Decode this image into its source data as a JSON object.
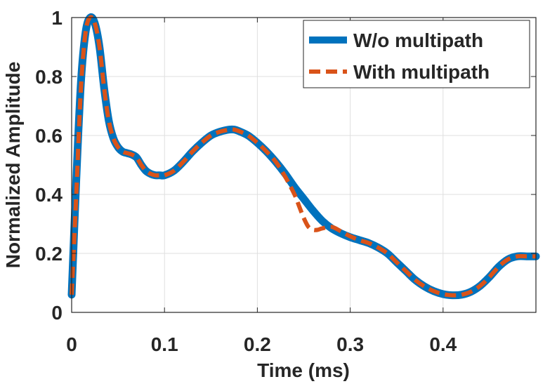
{
  "chart_data": {
    "type": "line",
    "title": "",
    "xlabel": "Time (ms)",
    "ylabel": "Normalized Amplitude",
    "xlim": [
      0,
      0.5
    ],
    "ylim": [
      0,
      1
    ],
    "xticks": [
      0,
      0.1,
      0.2,
      0.3,
      0.4
    ],
    "xtick_labels": [
      "0",
      "0.1",
      "0.2",
      "0.3",
      "0.4"
    ],
    "yticks": [
      0,
      0.2,
      0.4,
      0.6,
      0.8,
      1
    ],
    "ytick_labels": [
      "0",
      "0.2",
      "0.4",
      "0.6",
      "0.8",
      "1"
    ],
    "grid": true,
    "legend_position": "top-right",
    "series": [
      {
        "name": "W/o multipath",
        "color": "#0072BD",
        "style": "solid",
        "x": [
          0.0,
          0.005,
          0.01,
          0.015,
          0.02,
          0.025,
          0.03,
          0.035,
          0.04,
          0.045,
          0.05,
          0.055,
          0.06,
          0.065,
          0.07,
          0.075,
          0.08,
          0.085,
          0.09,
          0.095,
          0.1,
          0.11,
          0.12,
          0.13,
          0.14,
          0.15,
          0.16,
          0.17,
          0.175,
          0.18,
          0.19,
          0.2,
          0.21,
          0.22,
          0.23,
          0.24,
          0.25,
          0.26,
          0.27,
          0.28,
          0.29,
          0.3,
          0.31,
          0.32,
          0.33,
          0.34,
          0.35,
          0.36,
          0.37,
          0.38,
          0.39,
          0.4,
          0.41,
          0.42,
          0.43,
          0.44,
          0.45,
          0.46,
          0.47,
          0.48,
          0.49,
          0.5
        ],
        "y": [
          0.06,
          0.45,
          0.78,
          0.95,
          1.0,
          0.98,
          0.9,
          0.76,
          0.65,
          0.59,
          0.56,
          0.545,
          0.54,
          0.535,
          0.525,
          0.5,
          0.48,
          0.47,
          0.465,
          0.465,
          0.465,
          0.48,
          0.51,
          0.545,
          0.575,
          0.6,
          0.613,
          0.62,
          0.62,
          0.615,
          0.6,
          0.575,
          0.545,
          0.51,
          0.47,
          0.425,
          0.385,
          0.345,
          0.31,
          0.285,
          0.268,
          0.255,
          0.245,
          0.235,
          0.22,
          0.2,
          0.17,
          0.14,
          0.11,
          0.088,
          0.072,
          0.062,
          0.058,
          0.06,
          0.07,
          0.09,
          0.12,
          0.155,
          0.18,
          0.19,
          0.19,
          0.19
        ]
      },
      {
        "name": "With multipath",
        "color": "#D95319",
        "style": "dashed",
        "x": [
          0.0,
          0.005,
          0.01,
          0.015,
          0.02,
          0.025,
          0.03,
          0.035,
          0.04,
          0.045,
          0.05,
          0.055,
          0.06,
          0.065,
          0.07,
          0.075,
          0.08,
          0.085,
          0.09,
          0.095,
          0.1,
          0.11,
          0.12,
          0.13,
          0.14,
          0.15,
          0.16,
          0.17,
          0.175,
          0.18,
          0.19,
          0.2,
          0.21,
          0.22,
          0.23,
          0.24,
          0.245,
          0.25,
          0.255,
          0.26,
          0.265,
          0.27,
          0.28,
          0.29,
          0.3,
          0.31,
          0.32,
          0.33,
          0.34,
          0.35,
          0.36,
          0.37,
          0.38,
          0.39,
          0.4,
          0.41,
          0.42,
          0.43,
          0.44,
          0.45,
          0.46,
          0.47,
          0.48,
          0.49,
          0.5
        ],
        "y": [
          0.06,
          0.4,
          0.76,
          0.95,
          1.0,
          0.98,
          0.9,
          0.76,
          0.65,
          0.59,
          0.56,
          0.545,
          0.54,
          0.535,
          0.525,
          0.5,
          0.48,
          0.47,
          0.465,
          0.465,
          0.465,
          0.48,
          0.51,
          0.545,
          0.575,
          0.6,
          0.613,
          0.62,
          0.62,
          0.615,
          0.6,
          0.575,
          0.545,
          0.51,
          0.46,
          0.4,
          0.36,
          0.32,
          0.29,
          0.28,
          0.28,
          0.285,
          0.29,
          0.275,
          0.258,
          0.245,
          0.235,
          0.22,
          0.2,
          0.17,
          0.14,
          0.11,
          0.088,
          0.072,
          0.062,
          0.058,
          0.06,
          0.07,
          0.09,
          0.12,
          0.155,
          0.18,
          0.19,
          0.19,
          0.19
        ]
      }
    ]
  }
}
